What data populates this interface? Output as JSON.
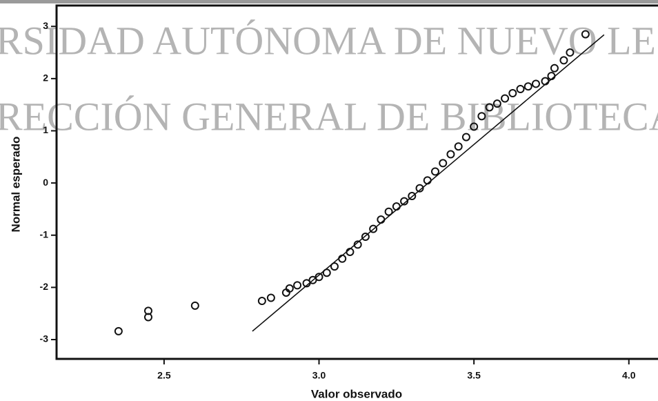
{
  "chart_data": {
    "type": "scatter",
    "xlabel": "Valor observado",
    "ylabel": "Normal esperado",
    "annotations": [
      "RSIDAD AUTÓNOMA DE NUEVO LE",
      "RECCIÓN GENERAL DE BIBLIOTECAS"
    ],
    "x": [
      2.353,
      2.449,
      2.449,
      2.6,
      2.816,
      2.845,
      2.894,
      2.905,
      2.93,
      2.96,
      2.98,
      3.0,
      3.025,
      3.05,
      3.075,
      3.1,
      3.125,
      3.15,
      3.175,
      3.2,
      3.225,
      3.25,
      3.275,
      3.3,
      3.325,
      3.35,
      3.375,
      3.4,
      3.425,
      3.45,
      3.475,
      3.5,
      3.525,
      3.55,
      3.575,
      3.6,
      3.625,
      3.65,
      3.675,
      3.7,
      3.73,
      3.75,
      3.76,
      3.79,
      3.81,
      3.86
    ],
    "y": [
      -2.84,
      -2.45,
      -2.57,
      -2.35,
      -2.26,
      -2.2,
      -2.1,
      -2.02,
      -1.96,
      -1.92,
      -1.86,
      -1.8,
      -1.72,
      -1.6,
      -1.45,
      -1.32,
      -1.18,
      -1.03,
      -0.88,
      -0.7,
      -0.55,
      -0.45,
      -0.35,
      -0.25,
      -0.1,
      0.05,
      0.22,
      0.38,
      0.55,
      0.7,
      0.88,
      1.08,
      1.28,
      1.45,
      1.52,
      1.62,
      1.72,
      1.8,
      1.85,
      1.9,
      1.95,
      2.05,
      2.2,
      2.35,
      2.5,
      2.85
    ],
    "color": "#111111",
    "reference_line": {
      "x": [
        2.785,
        3.92
      ],
      "y": [
        -2.84,
        2.84
      ]
    },
    "xlim": [
      2.153,
      4.094
    ],
    "ylim": [
      -3.37,
      3.4
    ],
    "xticks": [
      2.5,
      {
        "value": 3,
        "label": "3.0"
      },
      3.5,
      {
        "value": 4,
        "label": "4.0"
      }
    ],
    "yticks": [
      -3,
      -2,
      -1,
      0,
      1,
      2,
      3
    ]
  }
}
